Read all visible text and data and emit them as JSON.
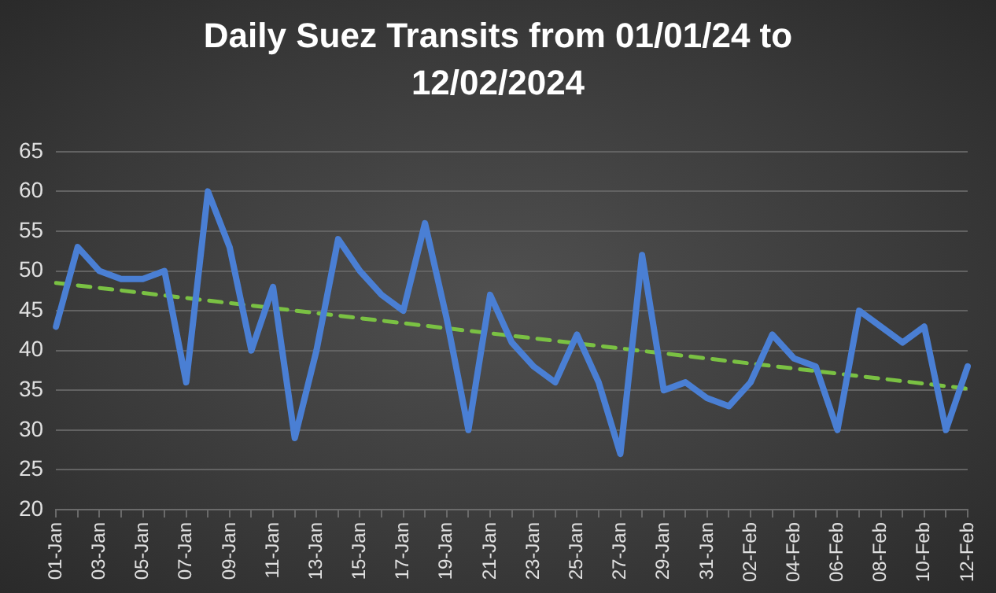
{
  "chart_data": {
    "type": "line",
    "title": "Daily Suez Transits from 01/01/24 to 12/02/2024",
    "categories": [
      "01-Jan",
      null,
      "03-Jan",
      null,
      "05-Jan",
      null,
      "07-Jan",
      null,
      "09-Jan",
      null,
      "11-Jan",
      null,
      "13-Jan",
      null,
      "15-Jan",
      null,
      "17-Jan",
      null,
      "19-Jan",
      null,
      "21-Jan",
      null,
      "23-Jan",
      null,
      "25-Jan",
      null,
      "27-Jan",
      null,
      "29-Jan",
      null,
      "31-Jan",
      null,
      "02-Feb",
      null,
      "04-Feb",
      null,
      "06-Feb",
      null,
      "08-Feb",
      null,
      "10-Feb",
      null,
      "12-Feb"
    ],
    "series": [
      {
        "color": "#4a7fd4",
        "values": [
          43,
          53,
          50,
          49,
          49,
          50,
          36,
          60,
          53,
          40,
          48,
          29,
          40,
          54,
          50,
          47,
          45,
          56,
          44,
          30,
          47,
          41,
          38,
          36,
          42,
          36,
          27,
          52,
          35,
          36,
          34,
          33,
          36,
          42,
          39,
          38,
          30,
          45,
          43,
          41,
          43,
          30,
          38
        ]
      },
      {
        "type": "line",
        "color": "#7ac143",
        "line_style": "dashed",
        "x": [
          "01-Jan",
          "12-Feb"
        ],
        "values": [
          48.5,
          35.2
        ]
      }
    ],
    "ylim": [
      20,
      65
    ],
    "yticks": [
      20,
      25,
      30,
      35,
      40,
      45,
      50,
      55,
      60,
      65
    ],
    "grid": "y",
    "legend": false,
    "marker": "none",
    "line_style": "solid"
  }
}
